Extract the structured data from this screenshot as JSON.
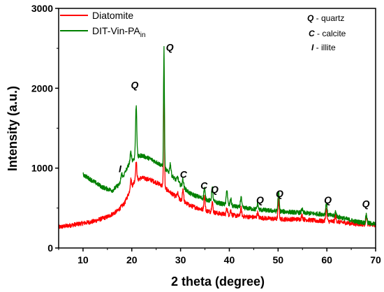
{
  "chart_data": {
    "type": "line",
    "title": "",
    "xlabel": "2 theta (degree)",
    "ylabel": "Intensity (a.u.)",
    "xlim": [
      5,
      70
    ],
    "ylim": [
      0,
      3000
    ],
    "xticks": [
      10,
      20,
      30,
      40,
      50,
      60,
      70
    ],
    "yticks": [
      0,
      1000,
      2000,
      3000
    ],
    "grid": false,
    "legend_position": "top-left",
    "series": [
      {
        "name": "Diatomite",
        "color": "#ff0000",
        "baseline": [
          [
            5,
            260
          ],
          [
            8,
            290
          ],
          [
            12,
            330
          ],
          [
            15,
            390
          ],
          [
            17,
            460
          ],
          [
            18.5,
            560
          ],
          [
            19.5,
            700
          ],
          [
            20.5,
            830
          ],
          [
            22,
            880
          ],
          [
            24,
            850
          ],
          [
            26,
            790
          ],
          [
            28,
            690
          ],
          [
            30,
            600
          ],
          [
            32,
            530
          ],
          [
            35,
            470
          ],
          [
            38,
            430
          ],
          [
            42,
            400
          ],
          [
            46,
            380
          ],
          [
            50,
            360
          ],
          [
            55,
            360
          ],
          [
            58,
            340
          ],
          [
            62,
            330
          ],
          [
            66,
            300
          ],
          [
            70,
            290
          ]
        ],
        "peaks": [
          [
            19.8,
            120
          ],
          [
            20.9,
            230
          ],
          [
            26.6,
            1500
          ],
          [
            29.4,
            60
          ],
          [
            30.5,
            160
          ],
          [
            34.9,
            180
          ],
          [
            36.5,
            130
          ],
          [
            39.5,
            80
          ],
          [
            40.3,
            60
          ],
          [
            42.4,
            100
          ],
          [
            45.8,
            60
          ],
          [
            50.1,
            240
          ],
          [
            54.9,
            50
          ],
          [
            59.9,
            150
          ],
          [
            61.8,
            70
          ],
          [
            68.1,
            110
          ]
        ]
      },
      {
        "name": "DIT-Vin-PA_in",
        "color": "#008000",
        "baseline": [
          [
            10,
            920
          ],
          [
            12,
            840
          ],
          [
            14,
            760
          ],
          [
            16,
            720
          ],
          [
            17.5,
            800
          ],
          [
            18.5,
            930
          ],
          [
            19.5,
            1060
          ],
          [
            20.5,
            1120
          ],
          [
            22,
            1160
          ],
          [
            24,
            1110
          ],
          [
            26,
            1040
          ],
          [
            28,
            920
          ],
          [
            30,
            790
          ],
          [
            32,
            680
          ],
          [
            35,
            610
          ],
          [
            38,
            560
          ],
          [
            42,
            510
          ],
          [
            46,
            480
          ],
          [
            50,
            460
          ],
          [
            55,
            440
          ],
          [
            60,
            420
          ],
          [
            63,
            380
          ],
          [
            66,
            330
          ],
          [
            70,
            300
          ]
        ],
        "peaks": [
          [
            17.9,
            80
          ],
          [
            19.8,
            120
          ],
          [
            20.9,
            650
          ],
          [
            26.6,
            1500
          ],
          [
            27.9,
            130
          ],
          [
            29.4,
            60
          ],
          [
            30.5,
            100
          ],
          [
            34.9,
            140
          ],
          [
            36.5,
            170
          ],
          [
            39.5,
            190
          ],
          [
            40.3,
            80
          ],
          [
            42.4,
            130
          ],
          [
            45.8,
            70
          ],
          [
            50.1,
            240
          ],
          [
            54.9,
            50
          ],
          [
            59.9,
            140
          ],
          [
            61.8,
            60
          ],
          [
            68.1,
            110
          ]
        ]
      }
    ],
    "annotations": [
      {
        "text": "Q",
        "x": 20.6,
        "y": 2000
      },
      {
        "text": "Q",
        "x": 27.8,
        "y": 2470
      },
      {
        "text": "I",
        "x": 17.6,
        "y": 950
      },
      {
        "text": "C",
        "x": 30.6,
        "y": 880
      },
      {
        "text": "C",
        "x": 34.8,
        "y": 740
      },
      {
        "text": "Q",
        "x": 37.0,
        "y": 690
      },
      {
        "text": "Q",
        "x": 46.3,
        "y": 560
      },
      {
        "text": "Q",
        "x": 50.3,
        "y": 640
      },
      {
        "text": "Q",
        "x": 60.2,
        "y": 560
      },
      {
        "text": "Q",
        "x": 68.0,
        "y": 510
      }
    ],
    "phase_key": [
      {
        "symbol": "Q",
        "label": " - quartz"
      },
      {
        "symbol": "C",
        "label": " - calcite"
      },
      {
        "symbol": "I",
        "label": " - illite"
      }
    ]
  }
}
